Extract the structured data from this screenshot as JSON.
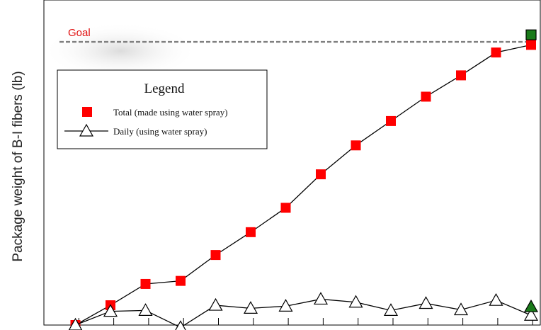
{
  "chart_data": {
    "type": "line",
    "title": "",
    "xlabel": "",
    "ylabel": "Package weight of B-I fibers  (lb)",
    "x": [
      1,
      2,
      3,
      4,
      5,
      6,
      7,
      8,
      9,
      10,
      11,
      12,
      13,
      14
    ],
    "xlim": [
      0,
      14.5
    ],
    "ylim": [
      0,
      100
    ],
    "grid": false,
    "goal": {
      "label": "Goal",
      "value": 93,
      "color": "#808080"
    },
    "legend": {
      "title": "Legend",
      "position": "upper-left"
    },
    "series": [
      {
        "name": "Total (made using water spray)",
        "marker": "square",
        "color": "#ff0000",
        "values": [
          0,
          6.5,
          13.5,
          14.5,
          23,
          30.5,
          38.5,
          49.5,
          59,
          67,
          75,
          82,
          89.5,
          92
        ]
      },
      {
        "name": "Daily (using water spray)",
        "marker": "triangle",
        "color": "#ffffff",
        "values": [
          0,
          4.5,
          4.8,
          -0.8,
          6.5,
          5.5,
          6.2,
          8.5,
          7.5,
          4.8,
          7.1,
          5.0,
          8.1,
          3.2
        ]
      }
    ],
    "final_markers": [
      {
        "series": "Total (made using water spray)",
        "x": 14,
        "value": 95.3,
        "marker": "square",
        "color": "#1a7a1a"
      },
      {
        "series": "Daily (using water spray)",
        "x": 14,
        "value": 6.0,
        "marker": "triangle",
        "color": "#1a7a1a"
      }
    ]
  }
}
